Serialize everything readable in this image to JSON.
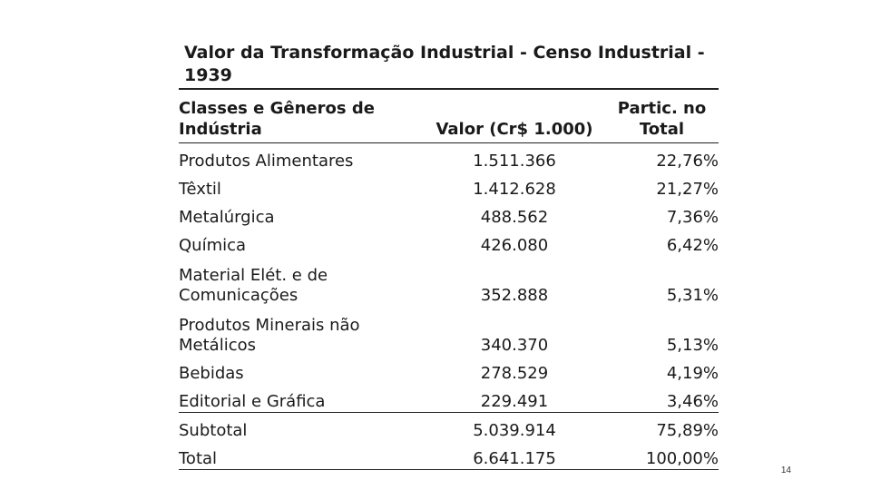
{
  "title": "Valor da Transformação Industrial - Censo Industrial - 1939",
  "headers": {
    "class": "Classes e Gêneros de Indústria",
    "value": "Valor (Cr$ 1.000)",
    "part": "Partic. no Total"
  },
  "rows": [
    {
      "class": "Produtos Alimentares",
      "value": "1.511.366",
      "part": "22,76%"
    },
    {
      "class": "Têxtil",
      "value": "1.412.628",
      "part": "21,27%"
    },
    {
      "class": "Metalúrgica",
      "value": "488.562",
      "part": "7,36%"
    },
    {
      "class": "Química",
      "value": "426.080",
      "part": "6,42%"
    },
    {
      "class": "Material Elét. e de Comunicações",
      "value": "352.888",
      "part": "5,31%"
    },
    {
      "class": "Produtos Minerais não Metálicos",
      "value": "340.370",
      "part": "5,13%"
    },
    {
      "class": "Bebidas",
      "value": "278.529",
      "part": "4,19%"
    },
    {
      "class": "Editorial e Gráfica",
      "value": "229.491",
      "part": "3,46%"
    }
  ],
  "subtotal": {
    "class": "Subtotal",
    "value": "5.039.914",
    "part": "75,89%"
  },
  "total": {
    "class": "Total",
    "value": "6.641.175",
    "part": "100,00%"
  },
  "page_number": "14"
}
